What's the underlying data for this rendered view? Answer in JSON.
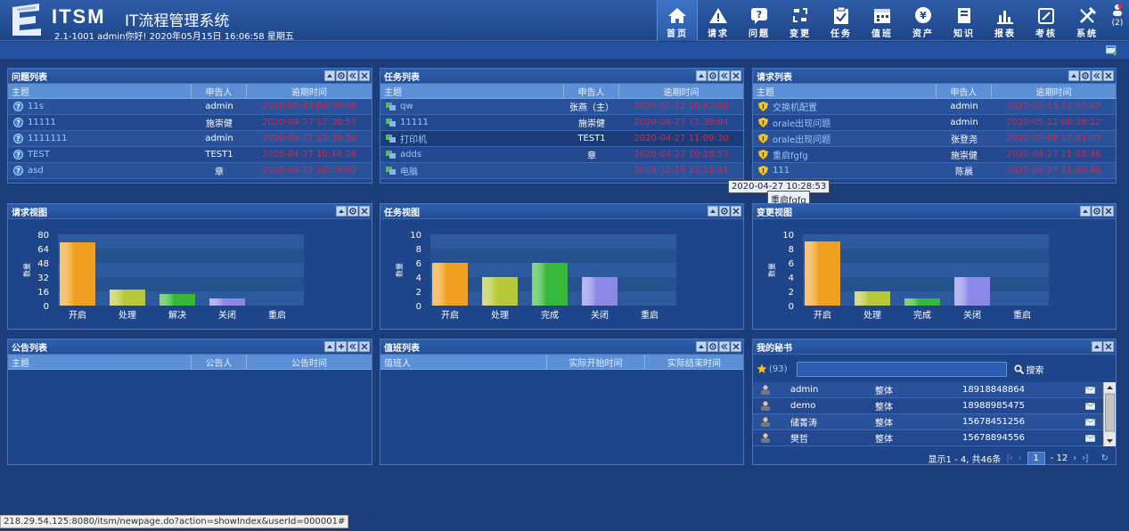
{
  "header": {
    "logo_text": "ITSM",
    "title": "IT流程管理系统",
    "info": "2.1-1001 admin你好! 2020年05月15日 16:06:58 星期五",
    "user_badge": "(2)"
  },
  "nav": [
    {
      "label": "首页",
      "icon": "home-icon",
      "active": true
    },
    {
      "label": "请求",
      "icon": "warning-icon"
    },
    {
      "label": "问题",
      "icon": "question-icon"
    },
    {
      "label": "变更",
      "icon": "change-icon"
    },
    {
      "label": "任务",
      "icon": "task-icon"
    },
    {
      "label": "值班",
      "icon": "calendar-icon"
    },
    {
      "label": "资产",
      "icon": "yen-icon"
    },
    {
      "label": "知识",
      "icon": "book-icon"
    },
    {
      "label": "报表",
      "icon": "report-icon"
    },
    {
      "label": "考核",
      "icon": "edit-icon"
    },
    {
      "label": "系统",
      "icon": "tools-icon"
    }
  ],
  "problems": {
    "title": "问题列表",
    "headers": [
      "主题",
      "申告人",
      "逾期时间"
    ],
    "rows": [
      [
        "11s",
        "admin",
        "2020-05-13 09:39:58"
      ],
      [
        "11111",
        "施崇健",
        "2020-04-27 12:30:57"
      ],
      [
        "1111111",
        "admin",
        "2020-04-27 12:39:30"
      ],
      [
        "TEST",
        "TEST1",
        "2020-04-27 10:44:28"
      ],
      [
        "asd",
        "章",
        "2020-04-27 10:29:02"
      ]
    ]
  },
  "tasks": {
    "title": "任务列表",
    "headers": [
      "主题",
      "申告人",
      "逾期时间"
    ],
    "rows": [
      [
        "qw",
        "张燕（主）",
        "2020-05-12 10:42:00"
      ],
      [
        "11111",
        "施崇健",
        "2020-04-27 12:38:04"
      ],
      [
        "打印机",
        "TEST1",
        "2020-04-27 11:09:30"
      ],
      [
        "adds",
        "章",
        "2020-04-27 10:28:53"
      ],
      [
        "电脑",
        "",
        "2018-12-19 11:11:41"
      ]
    ]
  },
  "requests": {
    "title": "请求列表",
    "headers": [
      "主题",
      "申告人",
      "逾期时间"
    ],
    "rows": [
      [
        "交换机配置",
        "admin",
        "2020-05-13 12:33:47"
      ],
      [
        "orale出现问题",
        "admin",
        "2020-05-12 08:38:12"
      ],
      [
        "orale出现问题",
        "张登尧",
        "2020-05-08 17:41:53"
      ],
      [
        "重启fgfg",
        "施崇健",
        "2020-04-27 11:08:46"
      ],
      [
        "111",
        "陈晨",
        "2020-04-27 11:00:40"
      ]
    ]
  },
  "tooltip": {
    "time": "2020-04-27 10:28:53",
    "text": "重启fgfg"
  },
  "charts": {
    "request": {
      "title": "请求视图"
    },
    "task": {
      "title": "任务视图"
    },
    "change": {
      "title": "变更视图"
    }
  },
  "chart_data": [
    {
      "type": "bar",
      "title": "请求视图",
      "ylabel": "数量",
      "categories": [
        "开启",
        "处理",
        "解决",
        "关闭",
        "重启"
      ],
      "values": [
        71,
        18,
        13,
        8,
        0
      ],
      "ylim": [
        0,
        80
      ],
      "yticks": [
        0,
        16,
        32,
        48,
        64,
        80
      ],
      "colors": [
        "#f0a020",
        "#b8c838",
        "#38b838",
        "#8c88e8",
        "#d04040"
      ]
    },
    {
      "type": "bar",
      "title": "任务视图",
      "ylabel": "数量",
      "categories": [
        "开启",
        "处理",
        "完成",
        "关闭",
        "重启"
      ],
      "values": [
        6,
        4,
        6,
        4,
        0
      ],
      "ylim": [
        0,
        10
      ],
      "yticks": [
        0,
        2,
        4,
        6,
        8,
        10
      ],
      "colors": [
        "#f0a020",
        "#b8c838",
        "#38b838",
        "#8c88e8",
        "#d04040"
      ]
    },
    {
      "type": "bar",
      "title": "变更视图",
      "ylabel": "数量",
      "categories": [
        "开启",
        "处理",
        "完成",
        "关闭",
        "重启"
      ],
      "values": [
        9,
        2,
        1,
        4,
        0
      ],
      "ylim": [
        0,
        10
      ],
      "yticks": [
        0,
        2,
        4,
        6,
        8,
        10
      ],
      "colors": [
        "#f0a020",
        "#b8c838",
        "#38b838",
        "#8c88e8",
        "#d04040"
      ]
    }
  ],
  "notices": {
    "title": "公告列表",
    "headers": [
      "主题",
      "公告人",
      "公告时间"
    ]
  },
  "duty": {
    "title": "值班列表",
    "headers": [
      "值班人",
      "实际开始时间",
      "实际结束时间"
    ]
  },
  "secretary": {
    "title": "我的秘书",
    "count": "(93)",
    "search_label": "搜索",
    "rows": [
      [
        "admin",
        "整体",
        "18918848864"
      ],
      [
        "demo",
        "整体",
        "18988985475"
      ],
      [
        "储菁涛",
        "整体",
        "15678451256"
      ],
      [
        "樊哲",
        "整体",
        "15678894556"
      ]
    ],
    "pager": {
      "info": "显示1 - 4, 共46条",
      "page": "1",
      "total": "- 12"
    }
  },
  "status_url": "218.29.54.125:8080/itsm/newpage.do?action=showIndex&userId=000001#"
}
